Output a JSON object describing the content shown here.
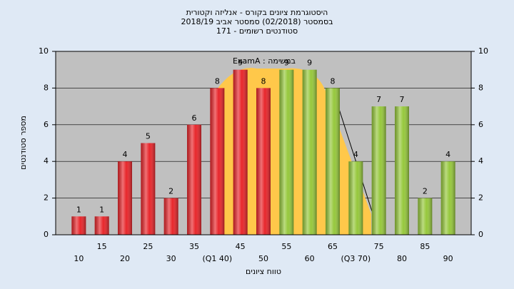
{
  "chart_data": {
    "type": "bar",
    "title": [
      "היסטוגרמת ציונים בקורס - אנליזה וקטורית",
      "בסמסטר  (02/2018)  סמסטר אביב 2018/19",
      "סטודנטים רשומים - 171"
    ],
    "annotation": "ExamA : במשימה",
    "x_label": "טווח ציונים",
    "y_label": "מספר סטודנטים",
    "categories": [
      "10",
      "15",
      "20",
      "25",
      "30",
      "35",
      "(Q1 40)",
      "45",
      "50",
      "55",
      "60",
      "65",
      "(Q3 70)",
      "75",
      "80",
      "85",
      "90"
    ],
    "values": [
      1,
      1,
      4,
      5,
      2,
      6,
      8,
      9,
      8,
      9,
      9,
      8,
      4,
      7,
      7,
      2,
      4
    ],
    "colors": [
      "#e8262b",
      "#e8262b",
      "#e8262b",
      "#e8262b",
      "#e8262b",
      "#e8262b",
      "#e8262b",
      "#e8262b",
      "#e8262b",
      "#96c83c",
      "#96c83c",
      "#96c83c",
      "#96c83c",
      "#96c83c",
      "#96c83c",
      "#96c83c",
      "#96c83c"
    ],
    "ylim": [
      0,
      10
    ],
    "yticks": [
      0,
      2,
      4,
      6,
      8,
      10
    ],
    "grid": true
  }
}
